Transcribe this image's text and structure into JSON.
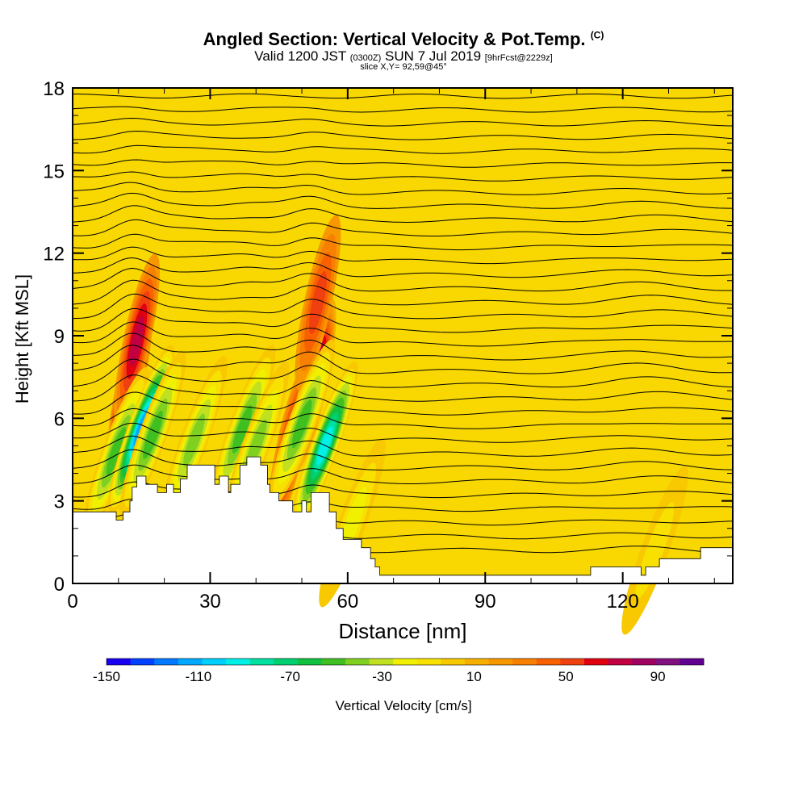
{
  "header": {
    "title_main": "Angled Section: Vertical Velocity & Pot.Temp.",
    "title_unit": "(C)",
    "subtitle_a": "Valid 1200 JST",
    "subtitle_z": "(0300Z)",
    "subtitle_b": "SUN 7 Jul 2019",
    "subtitle_fcst": "[9hrFcst@2229z]",
    "slice": "slice X,Y= 92,59@45°"
  },
  "colors": {
    "background_field": "#f8d800",
    "terrain": "#ffffff",
    "contour": "#000000",
    "colorbar": [
      "#1a00f0",
      "#0040ff",
      "#0078ff",
      "#00a8ff",
      "#00d0ff",
      "#00f0e8",
      "#00e0a0",
      "#00d070",
      "#10c040",
      "#40c020",
      "#80d020",
      "#c0e020",
      "#f0f000",
      "#f8e000",
      "#f8c800",
      "#f8b000",
      "#f89800",
      "#f88000",
      "#f86000",
      "#f04010",
      "#e00010",
      "#c00040",
      "#a00060",
      "#801080",
      "#600090"
    ]
  },
  "chart_data": {
    "type": "heatmap",
    "xlabel": "Distance [nm]",
    "ylabel": "Height [Kft MSL]",
    "xlim": [
      0,
      144
    ],
    "ylim": [
      0,
      18
    ],
    "xticks": [
      0,
      30,
      60,
      90,
      120
    ],
    "yticks": [
      0,
      3,
      6,
      9,
      12,
      15,
      18
    ],
    "colorbar": {
      "label": "Vertical Velocity [cm/s]",
      "ticks": [
        -150,
        -110,
        -70,
        -30,
        10,
        50,
        90
      ],
      "min": -150,
      "max": 110,
      "step": 10
    },
    "terrain_profile": [
      [
        0,
        2.6
      ],
      [
        9.5,
        2.6
      ],
      [
        9.5,
        2.3
      ],
      [
        11,
        2.3
      ],
      [
        11,
        2.6
      ],
      [
        12.5,
        2.6
      ],
      [
        12.5,
        3.0
      ],
      [
        13,
        3.0
      ],
      [
        13,
        3.5
      ],
      [
        14,
        3.5
      ],
      [
        14,
        3.9
      ],
      [
        16,
        3.9
      ],
      [
        16,
        3.6
      ],
      [
        18.5,
        3.6
      ],
      [
        18.5,
        3.3
      ],
      [
        20.5,
        3.3
      ],
      [
        20.5,
        3.6
      ],
      [
        22,
        3.6
      ],
      [
        22,
        3.3
      ],
      [
        23.5,
        3.3
      ],
      [
        23.5,
        3.8
      ],
      [
        25,
        3.8
      ],
      [
        25,
        4.3
      ],
      [
        31,
        4.3
      ],
      [
        31,
        3.6
      ],
      [
        32,
        3.6
      ],
      [
        32,
        3.9
      ],
      [
        34,
        3.9
      ],
      [
        34,
        3.3
      ],
      [
        34.5,
        3.3
      ],
      [
        34.5,
        3.6
      ],
      [
        36.5,
        3.6
      ],
      [
        36.5,
        4.3
      ],
      [
        38,
        4.3
      ],
      [
        38,
        4.6
      ],
      [
        41,
        4.6
      ],
      [
        41,
        4.3
      ],
      [
        42.5,
        4.3
      ],
      [
        42.5,
        3.6
      ],
      [
        43,
        3.6
      ],
      [
        43,
        3.3
      ],
      [
        45,
        3.3
      ],
      [
        45,
        3.0
      ],
      [
        48,
        3.0
      ],
      [
        48,
        2.6
      ],
      [
        50,
        2.6
      ],
      [
        50,
        3.0
      ],
      [
        51,
        3.0
      ],
      [
        51,
        2.6
      ],
      [
        52,
        2.6
      ],
      [
        52,
        3.3
      ],
      [
        56,
        3.3
      ],
      [
        56,
        2.6
      ],
      [
        57.5,
        2.6
      ],
      [
        57.5,
        2.0
      ],
      [
        59,
        2.0
      ],
      [
        59,
        1.6
      ],
      [
        63,
        1.6
      ],
      [
        63,
        1.3
      ],
      [
        65,
        1.3
      ],
      [
        65,
        0.9
      ],
      [
        66,
        0.9
      ],
      [
        66,
        0.6
      ],
      [
        67,
        0.6
      ],
      [
        67,
        0.3
      ],
      [
        113,
        0.3
      ],
      [
        113,
        0.6
      ],
      [
        118,
        0.6
      ],
      [
        118,
        0.6
      ],
      [
        124,
        0.6
      ],
      [
        124,
        0.3
      ],
      [
        125,
        0.3
      ],
      [
        125,
        0.6
      ],
      [
        128,
        0.6
      ],
      [
        128,
        0.9
      ],
      [
        137,
        0.9
      ],
      [
        137,
        1.3
      ],
      [
        144,
        1.3
      ],
      [
        144,
        0
      ]
    ],
    "updrafts": [
      {
        "x": 12.5,
        "z": 7.2,
        "peak": 100
      },
      {
        "x": 14.0,
        "z": 8.8,
        "peak": 60
      },
      {
        "x": 47.5,
        "z": 5.0,
        "peak": 60
      },
      {
        "x": 52.5,
        "z": 7.2,
        "peak": 95
      },
      {
        "x": 53.5,
        "z": 10.2,
        "peak": 40
      }
    ],
    "downdrafts": [
      {
        "x": 9.5,
        "z": 4.8,
        "peak": -55
      },
      {
        "x": 15.0,
        "z": 5.6,
        "peak": -120
      },
      {
        "x": 17.5,
        "z": 5.4,
        "peak": -60
      },
      {
        "x": 26.5,
        "z": 5.2,
        "peak": -45
      },
      {
        "x": 37.0,
        "z": 5.6,
        "peak": -55
      },
      {
        "x": 40.0,
        "z": 5.0,
        "peak": -50
      },
      {
        "x": 50.0,
        "z": 5.8,
        "peak": -60
      },
      {
        "x": 55.0,
        "z": 5.0,
        "peak": -95
      },
      {
        "x": 61.0,
        "z": 2.2,
        "peak": -25
      },
      {
        "x": 127.0,
        "z": 1.2,
        "peak": -20
      }
    ]
  }
}
